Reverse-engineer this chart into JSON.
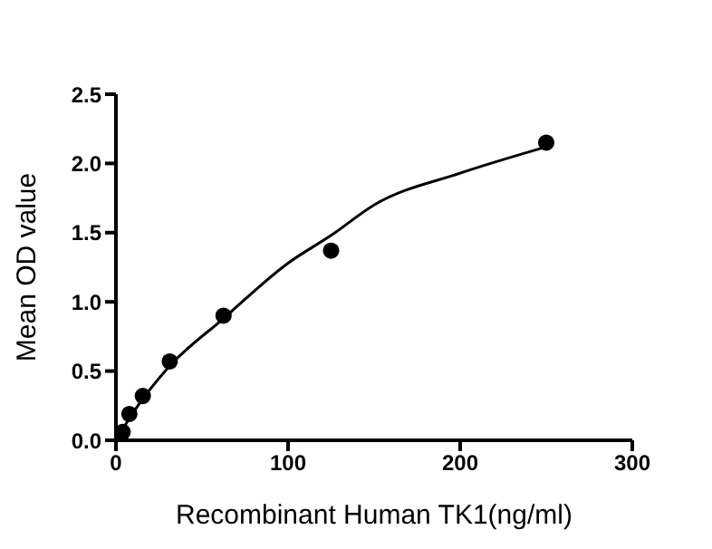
{
  "chart_data": {
    "type": "scatter",
    "xlabel": "Recombinant Human TK1(ng/ml)",
    "ylabel": "Mean OD value",
    "xlim": [
      0,
      300
    ],
    "xticks": [
      0,
      100,
      200,
      300
    ],
    "ylim": [
      0,
      2.5
    ],
    "yticks": [
      {
        "value": 0,
        "label": "0.0"
      },
      0.5,
      {
        "value": 1,
        "label": "1.0"
      },
      1.5,
      {
        "value": 2,
        "label": "2.0"
      },
      2.5
    ],
    "grid": false,
    "marker": "circle",
    "series": [
      {
        "color": "#000000",
        "x": [
          3.9,
          7.8,
          15.6,
          31.25,
          62.5,
          125,
          250
        ],
        "values": [
          0.06,
          0.19,
          0.32,
          0.57,
          0.9,
          1.37,
          2.15
        ]
      },
      {
        "type": "line",
        "color": "#000000",
        "marker": "none",
        "x": [
          0,
          10,
          30,
          62.5,
          100,
          125,
          150,
          200,
          250
        ],
        "values": [
          0,
          0.2,
          0.52,
          0.88,
          1.28,
          1.48,
          1.7,
          1.93,
          2.12
        ]
      }
    ]
  }
}
